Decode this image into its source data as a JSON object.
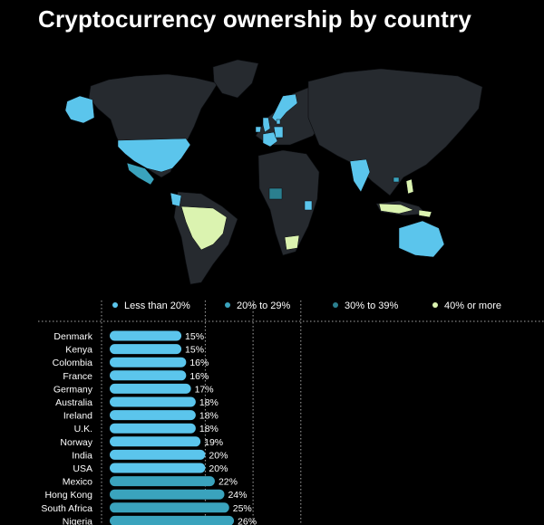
{
  "title": "Cryptocurrency ownership by country",
  "colors": {
    "background": "#000000",
    "land": "#262a2f",
    "land_border": "#0b0d10",
    "less_than_20": "#5bc5ec",
    "20_to_29": "#3aa3bd",
    "30_to_39": "#2b7f8f",
    "40_or_more": "#dbf3b0",
    "text": "#ffffff",
    "divider": "#cfcfcf"
  },
  "legend": [
    {
      "label": "Less than 20%",
      "color": "#5bc5ec"
    },
    {
      "label": "20% to 29%",
      "color": "#3aa3bd"
    },
    {
      "label": "30% to 39%",
      "color": "#2b7f8f"
    },
    {
      "label": "40% or more",
      "color": "#dbf3b0"
    }
  ],
  "chart_data": {
    "type": "bar",
    "orientation": "horizontal",
    "categories": [
      "Denmark",
      "Kenya",
      "Colombia",
      "France",
      "Germany",
      "Australia",
      "Ireland",
      "U.K.",
      "Norway",
      "India",
      "USA",
      "Mexico",
      "Hong Kong",
      "South Africa",
      "Nigeria"
    ],
    "values": [
      15,
      15,
      16,
      16,
      17,
      18,
      18,
      18,
      19,
      20,
      20,
      22,
      24,
      25,
      26
    ],
    "value_suffix": "%",
    "bar_colors": [
      "#5bc5ec",
      "#5bc5ec",
      "#5bc5ec",
      "#5bc5ec",
      "#5bc5ec",
      "#5bc5ec",
      "#5bc5ec",
      "#5bc5ec",
      "#5bc5ec",
      "#5bc5ec",
      "#5bc5ec",
      "#3aa3bd",
      "#3aa3bd",
      "#3aa3bd",
      "#3aa3bd"
    ],
    "gridlines": [
      20,
      30,
      40
    ],
    "xlim": [
      0,
      50
    ]
  }
}
